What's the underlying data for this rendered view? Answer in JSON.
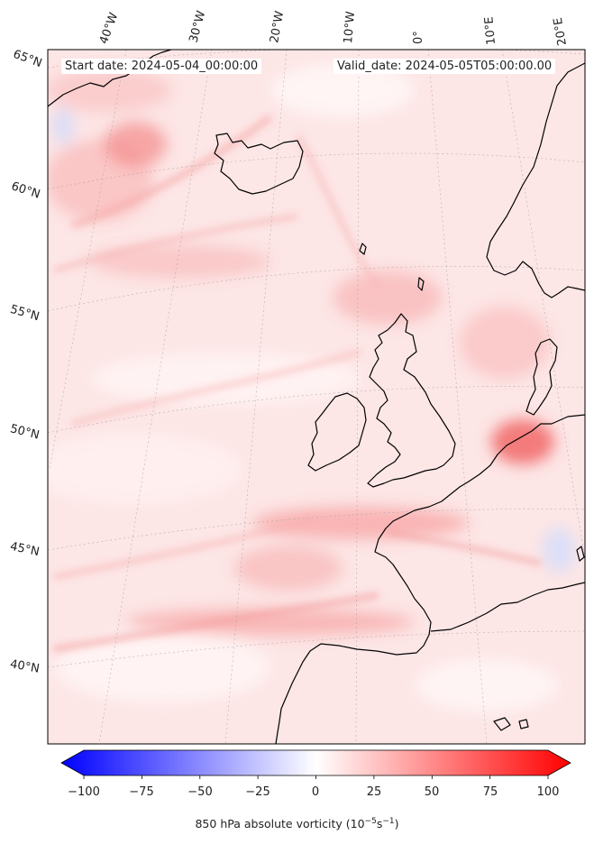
{
  "header": {
    "start_date": "Start date: 2024-05-04_00:00:00",
    "valid_date": "Valid_date: 2024-05-05T05:00:00.00"
  },
  "graticule": {
    "longitude_labels": [
      "40°W",
      "30°W",
      "20°W",
      "10°W",
      "0°",
      "10°E",
      "20°E"
    ],
    "latitude_labels": [
      "65°N",
      "60°N",
      "55°N",
      "50°N",
      "45°N",
      "40°N"
    ]
  },
  "colorbar": {
    "ticks": [
      "−100",
      "−75",
      "−50",
      "−25",
      "0",
      "25",
      "50",
      "75",
      "100"
    ],
    "min": -100,
    "max": 100,
    "label_prefix": "850 hPa absolute vorticity (10",
    "label_exp1": "−5",
    "label_mid": "s",
    "label_exp2": "−1",
    "label_suffix": ")"
  },
  "colors": {
    "negative": "#0000ff",
    "zero": "#ffffff",
    "positive": "#ff0000",
    "coastline": "#000000",
    "field_base": "#fde4e4"
  }
}
